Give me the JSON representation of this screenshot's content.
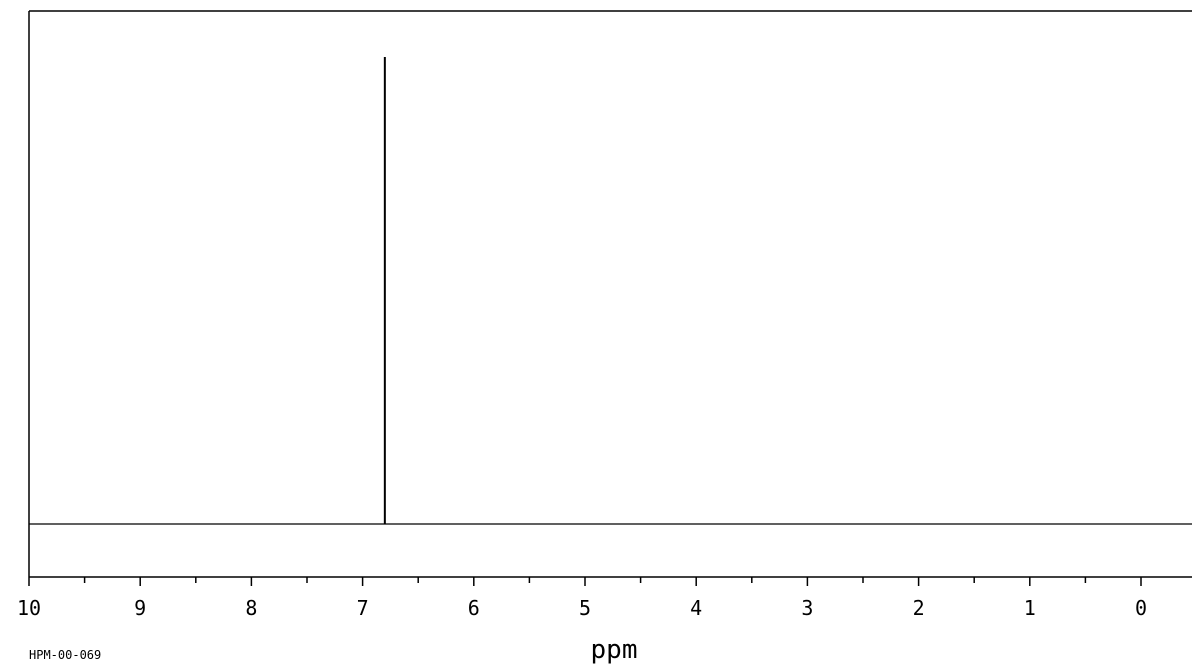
{
  "chart_data": {
    "type": "line",
    "xlabel": "ppm",
    "x_axis_reversed": true,
    "xlim": [
      10,
      0
    ],
    "major_ticks": [
      10,
      9,
      8,
      7,
      6,
      5,
      4,
      3,
      2,
      1,
      0
    ],
    "minor_ticks": [
      9.5,
      8.5,
      7.5,
      6.5,
      5.5,
      4.5,
      3.5,
      2.5,
      1.5,
      0.5
    ],
    "tick_labels": [
      "10",
      "9",
      "8",
      "7",
      "6",
      "5",
      "4",
      "3",
      "2",
      "1",
      "0"
    ],
    "ylim": [
      0,
      1
    ],
    "baseline": 0,
    "grid": false,
    "series": [
      {
        "peaks": [
          {
            "x": 6.8,
            "y": 1.0
          }
        ]
      }
    ],
    "spectrum_id": "HPM-00-069"
  },
  "colors": {
    "line": "#000000",
    "background": "#ffffff"
  }
}
